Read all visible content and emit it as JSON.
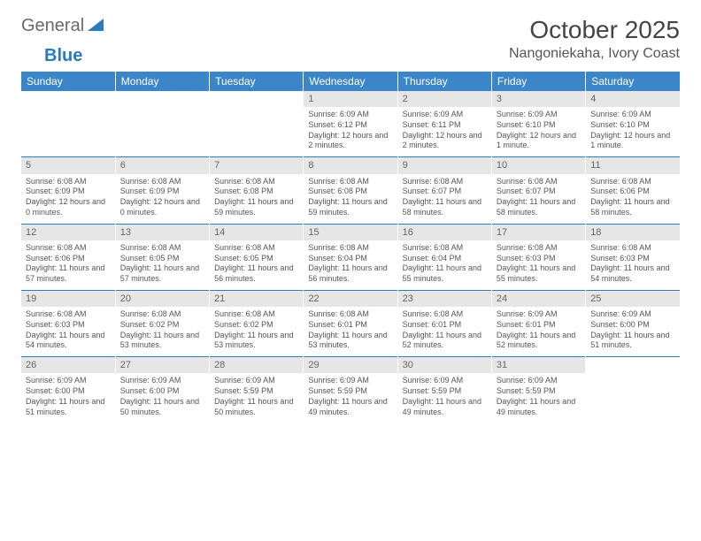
{
  "logo": {
    "word1": "General",
    "word2": "Blue"
  },
  "title": "October 2025",
  "location": "Nangoniekaha, Ivory Coast",
  "dow": [
    "Sunday",
    "Monday",
    "Tuesday",
    "Wednesday",
    "Thursday",
    "Friday",
    "Saturday"
  ],
  "colors": {
    "header_bg": "#3a86c8",
    "daynum_bg": "#e6e6e6",
    "rule": "#2b7bbf"
  },
  "weeks": [
    [
      {
        "n": "",
        "sr": "",
        "ss": "",
        "dl": ""
      },
      {
        "n": "",
        "sr": "",
        "ss": "",
        "dl": ""
      },
      {
        "n": "",
        "sr": "",
        "ss": "",
        "dl": ""
      },
      {
        "n": "1",
        "sr": "Sunrise: 6:09 AM",
        "ss": "Sunset: 6:12 PM",
        "dl": "Daylight: 12 hours and 2 minutes."
      },
      {
        "n": "2",
        "sr": "Sunrise: 6:09 AM",
        "ss": "Sunset: 6:11 PM",
        "dl": "Daylight: 12 hours and 2 minutes."
      },
      {
        "n": "3",
        "sr": "Sunrise: 6:09 AM",
        "ss": "Sunset: 6:10 PM",
        "dl": "Daylight: 12 hours and 1 minute."
      },
      {
        "n": "4",
        "sr": "Sunrise: 6:09 AM",
        "ss": "Sunset: 6:10 PM",
        "dl": "Daylight: 12 hours and 1 minute."
      }
    ],
    [
      {
        "n": "5",
        "sr": "Sunrise: 6:08 AM",
        "ss": "Sunset: 6:09 PM",
        "dl": "Daylight: 12 hours and 0 minutes."
      },
      {
        "n": "6",
        "sr": "Sunrise: 6:08 AM",
        "ss": "Sunset: 6:09 PM",
        "dl": "Daylight: 12 hours and 0 minutes."
      },
      {
        "n": "7",
        "sr": "Sunrise: 6:08 AM",
        "ss": "Sunset: 6:08 PM",
        "dl": "Daylight: 11 hours and 59 minutes."
      },
      {
        "n": "8",
        "sr": "Sunrise: 6:08 AM",
        "ss": "Sunset: 6:08 PM",
        "dl": "Daylight: 11 hours and 59 minutes."
      },
      {
        "n": "9",
        "sr": "Sunrise: 6:08 AM",
        "ss": "Sunset: 6:07 PM",
        "dl": "Daylight: 11 hours and 58 minutes."
      },
      {
        "n": "10",
        "sr": "Sunrise: 6:08 AM",
        "ss": "Sunset: 6:07 PM",
        "dl": "Daylight: 11 hours and 58 minutes."
      },
      {
        "n": "11",
        "sr": "Sunrise: 6:08 AM",
        "ss": "Sunset: 6:06 PM",
        "dl": "Daylight: 11 hours and 58 minutes."
      }
    ],
    [
      {
        "n": "12",
        "sr": "Sunrise: 6:08 AM",
        "ss": "Sunset: 6:06 PM",
        "dl": "Daylight: 11 hours and 57 minutes."
      },
      {
        "n": "13",
        "sr": "Sunrise: 6:08 AM",
        "ss": "Sunset: 6:05 PM",
        "dl": "Daylight: 11 hours and 57 minutes."
      },
      {
        "n": "14",
        "sr": "Sunrise: 6:08 AM",
        "ss": "Sunset: 6:05 PM",
        "dl": "Daylight: 11 hours and 56 minutes."
      },
      {
        "n": "15",
        "sr": "Sunrise: 6:08 AM",
        "ss": "Sunset: 6:04 PM",
        "dl": "Daylight: 11 hours and 56 minutes."
      },
      {
        "n": "16",
        "sr": "Sunrise: 6:08 AM",
        "ss": "Sunset: 6:04 PM",
        "dl": "Daylight: 11 hours and 55 minutes."
      },
      {
        "n": "17",
        "sr": "Sunrise: 6:08 AM",
        "ss": "Sunset: 6:03 PM",
        "dl": "Daylight: 11 hours and 55 minutes."
      },
      {
        "n": "18",
        "sr": "Sunrise: 6:08 AM",
        "ss": "Sunset: 6:03 PM",
        "dl": "Daylight: 11 hours and 54 minutes."
      }
    ],
    [
      {
        "n": "19",
        "sr": "Sunrise: 6:08 AM",
        "ss": "Sunset: 6:03 PM",
        "dl": "Daylight: 11 hours and 54 minutes."
      },
      {
        "n": "20",
        "sr": "Sunrise: 6:08 AM",
        "ss": "Sunset: 6:02 PM",
        "dl": "Daylight: 11 hours and 53 minutes."
      },
      {
        "n": "21",
        "sr": "Sunrise: 6:08 AM",
        "ss": "Sunset: 6:02 PM",
        "dl": "Daylight: 11 hours and 53 minutes."
      },
      {
        "n": "22",
        "sr": "Sunrise: 6:08 AM",
        "ss": "Sunset: 6:01 PM",
        "dl": "Daylight: 11 hours and 53 minutes."
      },
      {
        "n": "23",
        "sr": "Sunrise: 6:08 AM",
        "ss": "Sunset: 6:01 PM",
        "dl": "Daylight: 11 hours and 52 minutes."
      },
      {
        "n": "24",
        "sr": "Sunrise: 6:09 AM",
        "ss": "Sunset: 6:01 PM",
        "dl": "Daylight: 11 hours and 52 minutes."
      },
      {
        "n": "25",
        "sr": "Sunrise: 6:09 AM",
        "ss": "Sunset: 6:00 PM",
        "dl": "Daylight: 11 hours and 51 minutes."
      }
    ],
    [
      {
        "n": "26",
        "sr": "Sunrise: 6:09 AM",
        "ss": "Sunset: 6:00 PM",
        "dl": "Daylight: 11 hours and 51 minutes."
      },
      {
        "n": "27",
        "sr": "Sunrise: 6:09 AM",
        "ss": "Sunset: 6:00 PM",
        "dl": "Daylight: 11 hours and 50 minutes."
      },
      {
        "n": "28",
        "sr": "Sunrise: 6:09 AM",
        "ss": "Sunset: 5:59 PM",
        "dl": "Daylight: 11 hours and 50 minutes."
      },
      {
        "n": "29",
        "sr": "Sunrise: 6:09 AM",
        "ss": "Sunset: 5:59 PM",
        "dl": "Daylight: 11 hours and 49 minutes."
      },
      {
        "n": "30",
        "sr": "Sunrise: 6:09 AM",
        "ss": "Sunset: 5:59 PM",
        "dl": "Daylight: 11 hours and 49 minutes."
      },
      {
        "n": "31",
        "sr": "Sunrise: 6:09 AM",
        "ss": "Sunset: 5:59 PM",
        "dl": "Daylight: 11 hours and 49 minutes."
      },
      {
        "n": "",
        "sr": "",
        "ss": "",
        "dl": ""
      }
    ]
  ]
}
